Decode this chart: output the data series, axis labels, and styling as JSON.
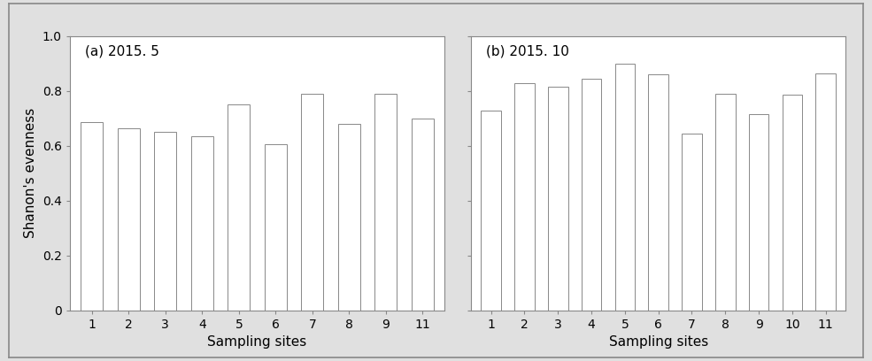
{
  "panel_a": {
    "title": "(a) 2015. 5",
    "categories": [
      "1",
      "2",
      "3",
      "4",
      "5",
      "6",
      "7",
      "8",
      "9",
      "11"
    ],
    "values": [
      0.685,
      0.665,
      0.65,
      0.635,
      0.75,
      0.605,
      0.79,
      0.68,
      0.79,
      0.7
    ]
  },
  "panel_b": {
    "title": "(b) 2015. 10",
    "categories": [
      "1",
      "2",
      "3",
      "4",
      "5",
      "6",
      "7",
      "8",
      "9",
      "10",
      "11"
    ],
    "values": [
      0.73,
      0.83,
      0.815,
      0.845,
      0.9,
      0.86,
      0.645,
      0.79,
      0.715,
      0.785,
      0.865
    ]
  },
  "ylabel": "Shanon's evenness",
  "xlabel": "Sampling sites",
  "ylim": [
    0,
    1.0
  ],
  "yticks": [
    0,
    0.2,
    0.4,
    0.6,
    0.8,
    1.0
  ],
  "ytick_labels": [
    "0",
    "0.2",
    "0.4",
    "0.6",
    "0.8",
    "1.0"
  ],
  "bar_color": "#ffffff",
  "bar_edgecolor": "#888888",
  "bar_linewidth": 0.7,
  "background_color": "#ffffff",
  "figure_background": "#ffffff",
  "outer_background": "#e0e0e0",
  "spine_color": "#888888",
  "title_fontsize": 11,
  "label_fontsize": 11,
  "tick_fontsize": 10
}
